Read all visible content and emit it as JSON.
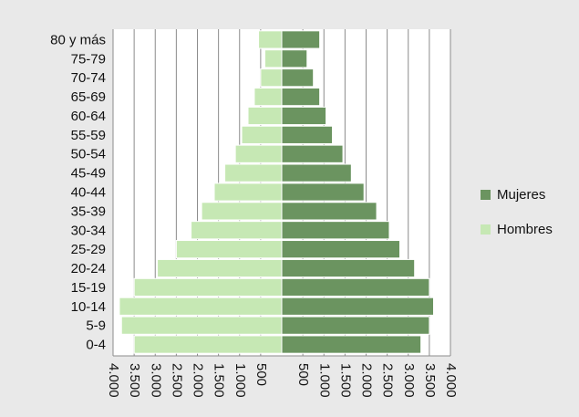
{
  "chart_data": {
    "type": "bar",
    "orientation": "horizontal",
    "layout": "population-pyramid",
    "categories": [
      "0-4",
      "5-9",
      "10-14",
      "15-19",
      "20-24",
      "25-29",
      "30-34",
      "35-39",
      "40-44",
      "45-49",
      "50-54",
      "55-59",
      "60-64",
      "65-69",
      "70-74",
      "75-79",
      "80 y más"
    ],
    "series": [
      {
        "name": "Mujeres",
        "color": "#6b9460",
        "side": "right",
        "values": [
          3300,
          3500,
          3600,
          3500,
          3150,
          2800,
          2550,
          2250,
          1950,
          1650,
          1450,
          1200,
          1050,
          900,
          750,
          600,
          900
        ]
      },
      {
        "name": "Hombres",
        "color": "#c6e8b4",
        "side": "left",
        "values": [
          3500,
          3800,
          3850,
          3500,
          2950,
          2500,
          2150,
          1900,
          1600,
          1350,
          1100,
          950,
          800,
          650,
          500,
          400,
          550
        ]
      }
    ],
    "xlim": [
      -4000,
      4000
    ],
    "xticks": [
      -4000,
      -3500,
      -3000,
      -2500,
      -2000,
      -1500,
      -1000,
      -500,
      500,
      1000,
      1500,
      2000,
      2500,
      3000,
      3500,
      4000
    ],
    "xtick_labels": [
      "4.000",
      "3.500",
      "3.000",
      "2.500",
      "2.000",
      "1.500",
      "1.000",
      "500",
      "500",
      "1.000",
      "1.500",
      "2.000",
      "2.500",
      "3.000",
      "3.500",
      "4.000"
    ],
    "grid": true,
    "legend_position": "right",
    "title": ""
  }
}
